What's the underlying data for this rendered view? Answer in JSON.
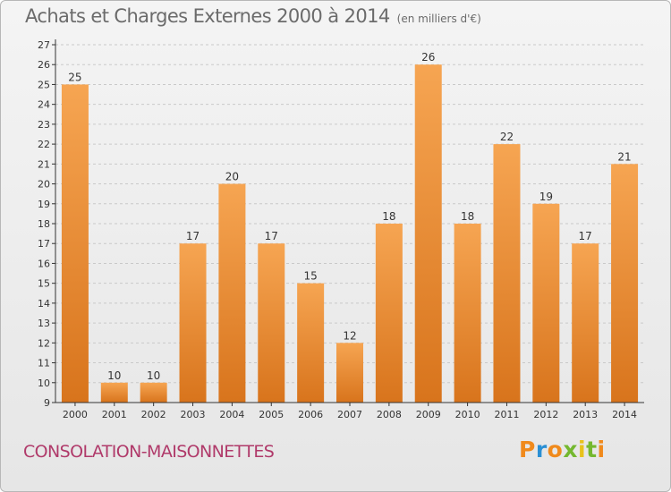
{
  "header": {
    "title": "Achats et Charges Externes 2000 à 2014",
    "subtitle": "(en milliers d'€)"
  },
  "footer": {
    "commune": "CONSOLATION-MAISONNETTES",
    "logo_text": "Proxiti"
  },
  "colors": {
    "bar_light": "#f6a552",
    "bar_dark": "#d8741c",
    "axis": "#333333",
    "grid": "#c9c9c9",
    "label": "#333333"
  },
  "chart_data": {
    "type": "bar",
    "title": "Achats et Charges Externes 2000 à 2014",
    "subtitle": "(en milliers d'€)",
    "categories": [
      "2000",
      "2001",
      "2002",
      "2003",
      "2004",
      "2005",
      "2006",
      "2007",
      "2008",
      "2009",
      "2010",
      "2011",
      "2012",
      "2013",
      "2014"
    ],
    "values": [
      25,
      10,
      10,
      17,
      20,
      17,
      15,
      12,
      18,
      26,
      18,
      22,
      19,
      17,
      21
    ],
    "ylim": [
      9,
      27
    ],
    "yticks": [
      9,
      10,
      11,
      12,
      13,
      14,
      15,
      16,
      17,
      18,
      19,
      20,
      21,
      22,
      23,
      24,
      25,
      26,
      27
    ],
    "grid": "horizontal dashed",
    "data_labels": true,
    "xlabel": "",
    "ylabel": ""
  }
}
